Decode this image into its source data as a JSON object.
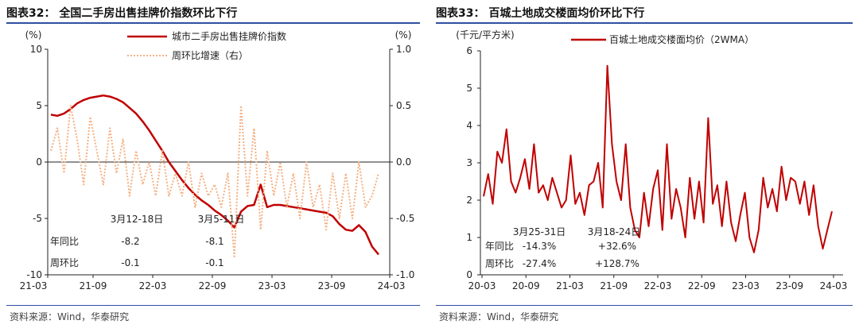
{
  "left": {
    "title": "图表32： 全国二手房出售挂牌价指数环比下行",
    "source": "资料来源：Wind，华泰研究",
    "chart_data": {
      "type": "line",
      "x_ticks": [
        "21-03",
        "21-09",
        "22-03",
        "22-09",
        "23-03",
        "23-09",
        "24-03"
      ],
      "y_left": {
        "unit": "(%)",
        "range": [
          -10,
          10
        ],
        "ticks": [
          "10",
          "5",
          "0",
          "-5",
          "-10"
        ]
      },
      "y_right": {
        "unit": "(%)",
        "range": [
          -1.0,
          1.0
        ],
        "ticks": [
          "1.0",
          "0.5",
          "0.0",
          "-0.5",
          "-1.0"
        ]
      },
      "legend": {
        "position": "top-right"
      },
      "series": [
        {
          "name": "城市二手房出售挂牌价指数",
          "axis": "left",
          "style": "solid",
          "color": "#c00000",
          "values": [
            4.2,
            4.1,
            4.3,
            4.7,
            5.2,
            5.5,
            5.7,
            5.8,
            5.9,
            5.8,
            5.6,
            5.3,
            4.8,
            4.3,
            3.6,
            2.8,
            1.9,
            1.0,
            0.0,
            -0.8,
            -1.6,
            -2.3,
            -2.9,
            -3.4,
            -3.8,
            -4.3,
            -4.7,
            -5.2,
            -5.8,
            -4.4,
            -3.9,
            -3.8,
            -2.0,
            -4.0,
            -3.8,
            -3.8,
            -3.9,
            -4.0,
            -4.1,
            -4.2,
            -4.3,
            -4.4,
            -4.5,
            -4.8,
            -5.5,
            -6.0,
            -6.1,
            -5.6,
            -6.2,
            -7.5,
            -8.2
          ]
        },
        {
          "name": "周环比增速（右）",
          "axis": "right",
          "style": "dotted",
          "color": "#f4b183",
          "values": [
            0.1,
            0.3,
            -0.1,
            0.5,
            0.2,
            -0.2,
            0.4,
            0.1,
            -0.2,
            0.3,
            -0.1,
            0.2,
            -0.3,
            0.1,
            -0.2,
            0.0,
            -0.3,
            0.1,
            -0.3,
            -0.1,
            -0.3,
            0.0,
            -0.4,
            -0.1,
            -0.3,
            -0.2,
            -0.4,
            -0.1,
            -0.85,
            0.5,
            -0.3,
            0.3,
            -0.6,
            0.1,
            -0.3,
            0.0,
            -0.4,
            -0.1,
            -0.5,
            0.0,
            -0.4,
            -0.2,
            -0.6,
            -0.1,
            -0.5,
            -0.1,
            -0.5,
            0.0,
            -0.4,
            -0.3,
            -0.1
          ]
        }
      ],
      "annotations": {
        "columns": [
          "3月12-18日",
          "3月5-11日"
        ],
        "rows": [
          {
            "label": "年同比",
            "values": [
              "-8.2",
              "-8.1"
            ]
          },
          {
            "label": "周环比",
            "values": [
              "-0.1",
              "-0.1"
            ]
          }
        ]
      }
    }
  },
  "right": {
    "title": "图表33： 百城土地成交楼面均价环比下行",
    "source": "资料来源：Wind，华泰研究",
    "chart_data": {
      "type": "line",
      "x_ticks": [
        "20-03",
        "20-09",
        "21-03",
        "21-09",
        "22-03",
        "22-09",
        "23-03",
        "23-09",
        "24-03"
      ],
      "y": {
        "unit": "(千元/平方米)",
        "range": [
          0,
          6
        ],
        "ticks": [
          "6",
          "5",
          "4",
          "3",
          "2",
          "1",
          "0"
        ]
      },
      "legend": {
        "position": "top-right"
      },
      "series": [
        {
          "name": "百城土地成交楼面均价（2WMA）",
          "color": "#c00000",
          "values": [
            2.1,
            2.7,
            1.9,
            3.3,
            3.0,
            3.9,
            2.5,
            2.2,
            2.6,
            3.1,
            2.3,
            3.5,
            2.2,
            2.4,
            2.0,
            2.6,
            2.2,
            1.8,
            2.0,
            3.2,
            1.9,
            2.2,
            1.6,
            2.4,
            2.5,
            3.0,
            1.8,
            5.6,
            3.5,
            2.5,
            2.0,
            3.5,
            1.8,
            1.2,
            1.0,
            2.2,
            1.3,
            2.3,
            2.8,
            1.2,
            3.5,
            1.5,
            2.3,
            1.8,
            1.0,
            2.6,
            1.5,
            2.5,
            1.4,
            4.2,
            1.9,
            2.4,
            1.3,
            2.5,
            1.4,
            0.9,
            1.6,
            2.2,
            1.0,
            0.6,
            1.2,
            2.6,
            1.8,
            2.3,
            1.7,
            2.9,
            2.0,
            2.6,
            2.5,
            1.9,
            2.5,
            1.6,
            2.4,
            1.3,
            0.7,
            1.2,
            1.7
          ]
        }
      ],
      "annotations": {
        "columns": [
          "3月25-31日",
          "3月18-24日"
        ],
        "rows": [
          {
            "label": "年同比",
            "values": [
              "-14.3%",
              "+32.6%"
            ]
          },
          {
            "label": "周环比",
            "values": [
              "-27.4%",
              "+128.7%"
            ]
          }
        ]
      }
    }
  }
}
